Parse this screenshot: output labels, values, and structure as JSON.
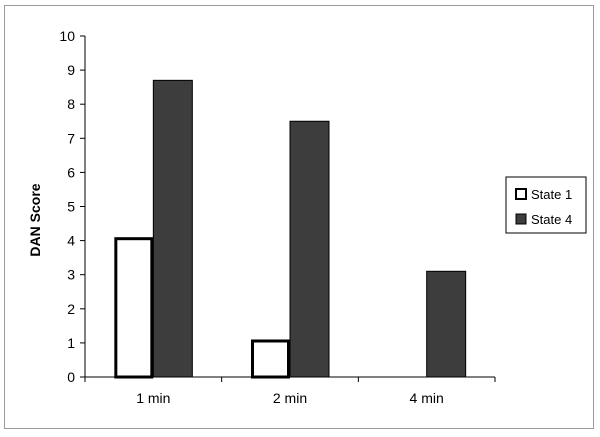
{
  "chart_data": {
    "type": "bar",
    "title": "",
    "xlabel": "",
    "ylabel": "DAN Score",
    "ylim": [
      0,
      10
    ],
    "yticks": [
      "0",
      "1",
      "2",
      "3",
      "4",
      "5",
      "6",
      "7",
      "8",
      "9",
      "10"
    ],
    "categories": [
      "1 min",
      "2 min",
      "4 min"
    ],
    "series": [
      {
        "name": "State 1",
        "values": [
          4.1,
          1.1,
          0
        ],
        "fill": "#ffffff",
        "stroke": "#000000"
      },
      {
        "name": "State 4",
        "values": [
          8.7,
          7.5,
          3.1
        ],
        "fill": "#3d3d3d",
        "stroke": "#000000"
      }
    ],
    "grid": false,
    "legend_position": "right"
  }
}
